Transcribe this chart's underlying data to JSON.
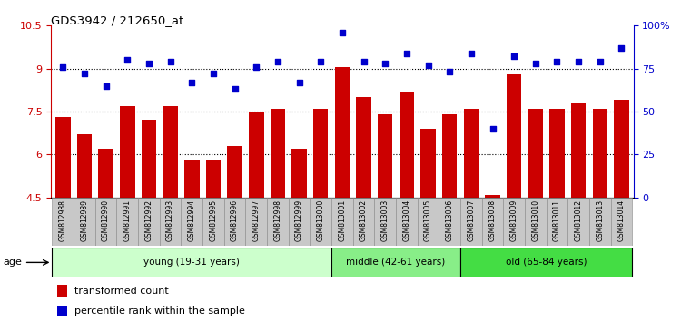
{
  "title": "GDS3942 / 212650_at",
  "samples": [
    "GSM812988",
    "GSM812989",
    "GSM812990",
    "GSM812991",
    "GSM812992",
    "GSM812993",
    "GSM812994",
    "GSM812995",
    "GSM812996",
    "GSM812997",
    "GSM812998",
    "GSM812999",
    "GSM813000",
    "GSM813001",
    "GSM813002",
    "GSM813003",
    "GSM813004",
    "GSM813005",
    "GSM813006",
    "GSM813007",
    "GSM813008",
    "GSM813009",
    "GSM813010",
    "GSM813011",
    "GSM813012",
    "GSM813013",
    "GSM813014"
  ],
  "bar_values": [
    7.3,
    6.7,
    6.2,
    7.7,
    7.2,
    7.7,
    5.8,
    5.8,
    6.3,
    7.5,
    7.6,
    6.2,
    7.6,
    9.05,
    8.0,
    7.4,
    8.2,
    6.9,
    7.4,
    7.6,
    4.6,
    8.8,
    7.6,
    7.6,
    7.8,
    7.6,
    7.9
  ],
  "percentile_values": [
    76,
    72,
    65,
    80,
    78,
    79,
    67,
    72,
    63,
    76,
    79,
    67,
    79,
    96,
    79,
    78,
    84,
    77,
    73,
    84,
    40,
    82,
    78,
    79,
    79,
    79,
    87
  ],
  "bar_color": "#cc0000",
  "dot_color": "#0000cc",
  "ylim_left": [
    4.5,
    10.5
  ],
  "ylim_right": [
    0,
    100
  ],
  "yticks_left": [
    4.5,
    6.0,
    7.5,
    9.0,
    10.5
  ],
  "ytick_labels_left": [
    "4.5",
    "6",
    "7.5",
    "9",
    "10.5"
  ],
  "yticks_right": [
    0,
    25,
    50,
    75,
    100
  ],
  "ytick_labels_right": [
    "0",
    "25",
    "50",
    "75",
    "100%"
  ],
  "hlines": [
    6.0,
    7.5,
    9.0
  ],
  "groups": [
    {
      "label": "young (19-31 years)",
      "start": 0,
      "end": 13,
      "color": "#ccffcc"
    },
    {
      "label": "middle (42-61 years)",
      "start": 13,
      "end": 19,
      "color": "#88ee88"
    },
    {
      "label": "old (65-84 years)",
      "start": 19,
      "end": 27,
      "color": "#44dd44"
    }
  ],
  "age_label": "age",
  "legend_bar_label": "transformed count",
  "legend_dot_label": "percentile rank within the sample",
  "bar_bottom": 4.5,
  "tick_bg_color": "#c8c8c8",
  "tick_border_color": "#888888"
}
